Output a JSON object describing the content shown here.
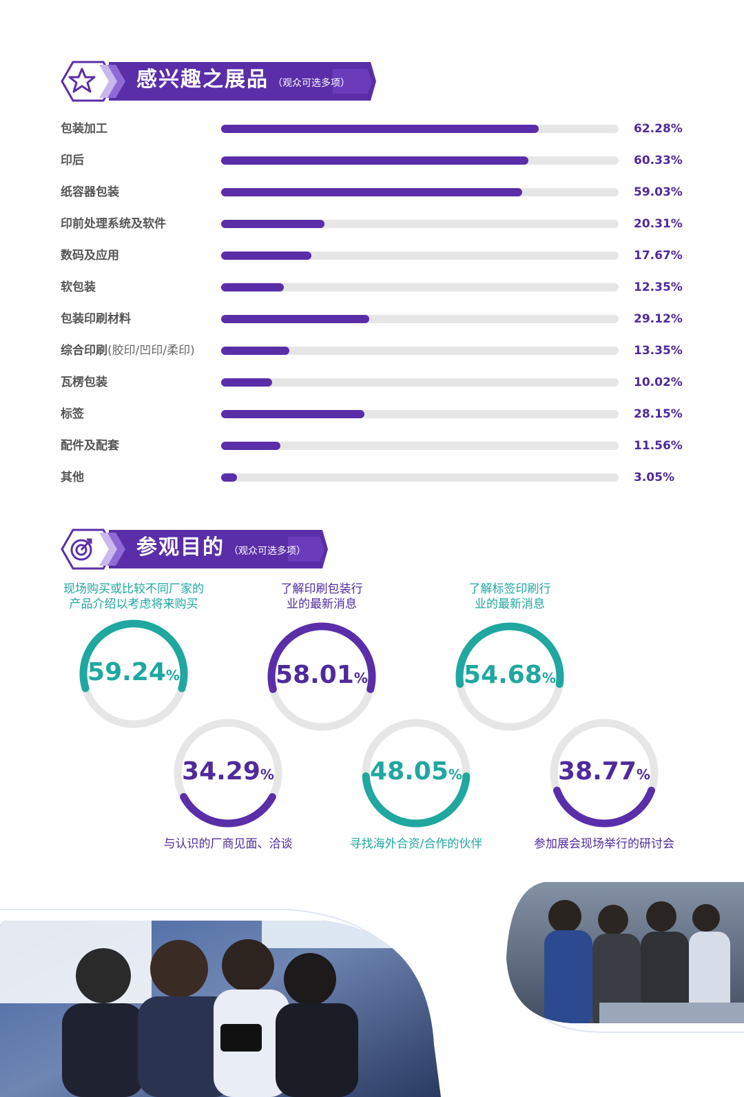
{
  "colors": {
    "purple": "#5a2ea8",
    "purple_dark": "#4e2a9c",
    "teal": "#1fa7a0",
    "track": "#e6e6e6"
  },
  "section1": {
    "title": "感兴趣之展品",
    "note": "（观众可选多项）",
    "icon": "star-icon"
  },
  "section2": {
    "title": "参观目的",
    "note": "（观众可选多项）",
    "icon": "target-icon"
  },
  "exhibits": [
    {
      "label": "包装加工",
      "sub": "",
      "value": "62.28%"
    },
    {
      "label": "印后",
      "sub": "",
      "value": "60.33%"
    },
    {
      "label": "纸容器包装",
      "sub": "",
      "value": "59.03%"
    },
    {
      "label": "印前处理系统及软件",
      "sub": "",
      "value": "20.31%"
    },
    {
      "label": "数码及应用",
      "sub": "",
      "value": "17.67%"
    },
    {
      "label": "软包装",
      "sub": "",
      "value": "12.35%"
    },
    {
      "label": "包装印刷材料",
      "sub": "",
      "value": "29.12%"
    },
    {
      "label": "综合印刷",
      "sub": "(胶印/凹印/柔印)",
      "value": "13.35%"
    },
    {
      "label": "瓦楞包装",
      "sub": "",
      "value": "10.02%"
    },
    {
      "label": "标签",
      "sub": "",
      "value": "28.15%"
    },
    {
      "label": "配件及配套",
      "sub": "",
      "value": "11.56%"
    },
    {
      "label": "其他",
      "sub": "",
      "value": "3.05%"
    }
  ],
  "purposes": [
    {
      "label1": "现场购买或比较不同厂家的",
      "label2": "产品介绍以考虑将来购买",
      "num": "59.24",
      "pct": "%",
      "color": "teal"
    },
    {
      "label1": "了解印刷包装行",
      "label2": "业的最新消息",
      "num": "58.01",
      "pct": "%",
      "color": "purple"
    },
    {
      "label1": "了解标签印刷行",
      "label2": "业的最新消息",
      "num": "54.68",
      "pct": "%",
      "color": "teal"
    },
    {
      "label1": "与认识的厂商见面、洽谈",
      "label2": "",
      "num": "34.29",
      "pct": "%",
      "color": "purple"
    },
    {
      "label1": "寻找海外合资/合作的伙伴",
      "label2": "",
      "num": "48.05",
      "pct": "%",
      "color": "teal"
    },
    {
      "label1": "参加展会现场举行的研讨会",
      "label2": "",
      "num": "38.77",
      "pct": "%",
      "color": "purple"
    }
  ],
  "chart_data": [
    {
      "type": "bar",
      "title": "感兴趣之展品",
      "subtitle": "（观众可选多项）",
      "categories": [
        "包装加工",
        "印后",
        "纸容器包装",
        "印前处理系统及软件",
        "数码及应用",
        "软包装",
        "包装印刷材料",
        "综合印刷(胶印/凹印/柔印)",
        "瓦楞包装",
        "标签",
        "配件及配套",
        "其他"
      ],
      "values": [
        62.28,
        60.33,
        59.03,
        20.31,
        17.67,
        12.35,
        29.12,
        13.35,
        10.02,
        28.15,
        11.56,
        3.05
      ],
      "ylim": [
        0,
        100
      ],
      "orientation": "horizontal"
    },
    {
      "type": "pie",
      "title": "参观目的",
      "subtitle": "（观众可选多项）",
      "categories": [
        "现场购买或比较不同厂家的产品介绍以考虑将来购买",
        "了解印刷包装行业的最新消息",
        "了解标签印刷行业的最新消息",
        "与认识的厂商见面、洽谈",
        "寻找海外合资/合作的伙伴",
        "参加展会现场举行的研讨会"
      ],
      "values": [
        59.24,
        58.01,
        54.68,
        34.29,
        48.05,
        38.77
      ]
    }
  ]
}
